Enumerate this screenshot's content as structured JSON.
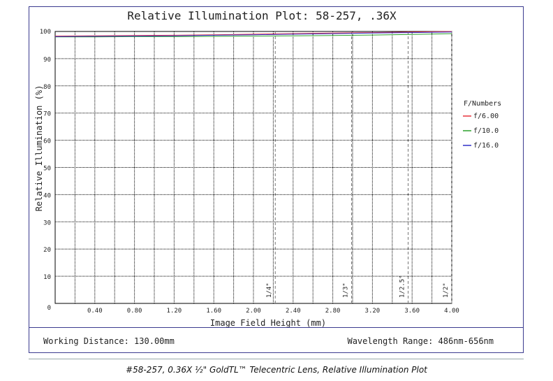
{
  "chart_data": {
    "type": "line",
    "title": "Relative Illumination Plot: 58-257, .36X",
    "xlabel": "Image Field Height (mm)",
    "ylabel": "Relative Illumination (%)",
    "xlim": [
      0,
      4.0
    ],
    "ylim": [
      0,
      100
    ],
    "x_ticks": [
      "0.40",
      "0.80",
      "1.20",
      "1.60",
      "2.00",
      "2.40",
      "2.80",
      "3.20",
      "3.60",
      "4.00"
    ],
    "y_ticks": [
      "0",
      "10",
      "20",
      "30",
      "40",
      "50",
      "60",
      "70",
      "80",
      "90",
      "100"
    ],
    "grid": true,
    "legend_title": "F/Numbers",
    "legend_position": "right",
    "series": [
      {
        "name": "f/6.00",
        "color": "#e8323c",
        "x": [
          0,
          0.4,
          0.8,
          1.2,
          1.6,
          2.0,
          2.4,
          2.8,
          3.2,
          3.6,
          4.0
        ],
        "y": [
          98.3,
          98.4,
          98.5,
          98.6,
          98.8,
          99.0,
          99.2,
          99.4,
          99.6,
          99.8,
          100
        ]
      },
      {
        "name": "f/10.0",
        "color": "#2ca02c",
        "x": [
          0,
          0.4,
          0.8,
          1.2,
          1.6,
          2.0,
          2.4,
          2.8,
          3.2,
          3.6,
          4.0
        ],
        "y": [
          98.0,
          98.0,
          98.1,
          98.1,
          98.2,
          98.3,
          98.4,
          98.5,
          98.7,
          98.9,
          99.2
        ]
      },
      {
        "name": "f/16.0",
        "color": "#3030c8",
        "x": [
          0,
          0.4,
          0.8,
          1.2,
          1.6,
          2.0,
          2.4,
          2.8,
          3.2,
          3.6,
          4.0
        ],
        "y": [
          98.1,
          98.2,
          98.3,
          98.4,
          98.6,
          98.8,
          99.0,
          99.2,
          99.4,
          99.6,
          99.8
        ]
      }
    ],
    "sensor_markers": [
      {
        "label": "1/4\"",
        "x": 2.22
      },
      {
        "label": "1/3\"",
        "x": 2.99
      },
      {
        "label": "1/2.5\"",
        "x": 3.56
      },
      {
        "label": "1/2\"",
        "x": 4.0
      }
    ]
  },
  "footer": {
    "working_distance": "Working Distance: 130.00mm",
    "wavelength_range": "Wavelength Range: 486nm-656nm"
  },
  "caption": "#58-257, 0.36X ½\" GoldTL™ Telecentric Lens, Relative Illumination Plot"
}
